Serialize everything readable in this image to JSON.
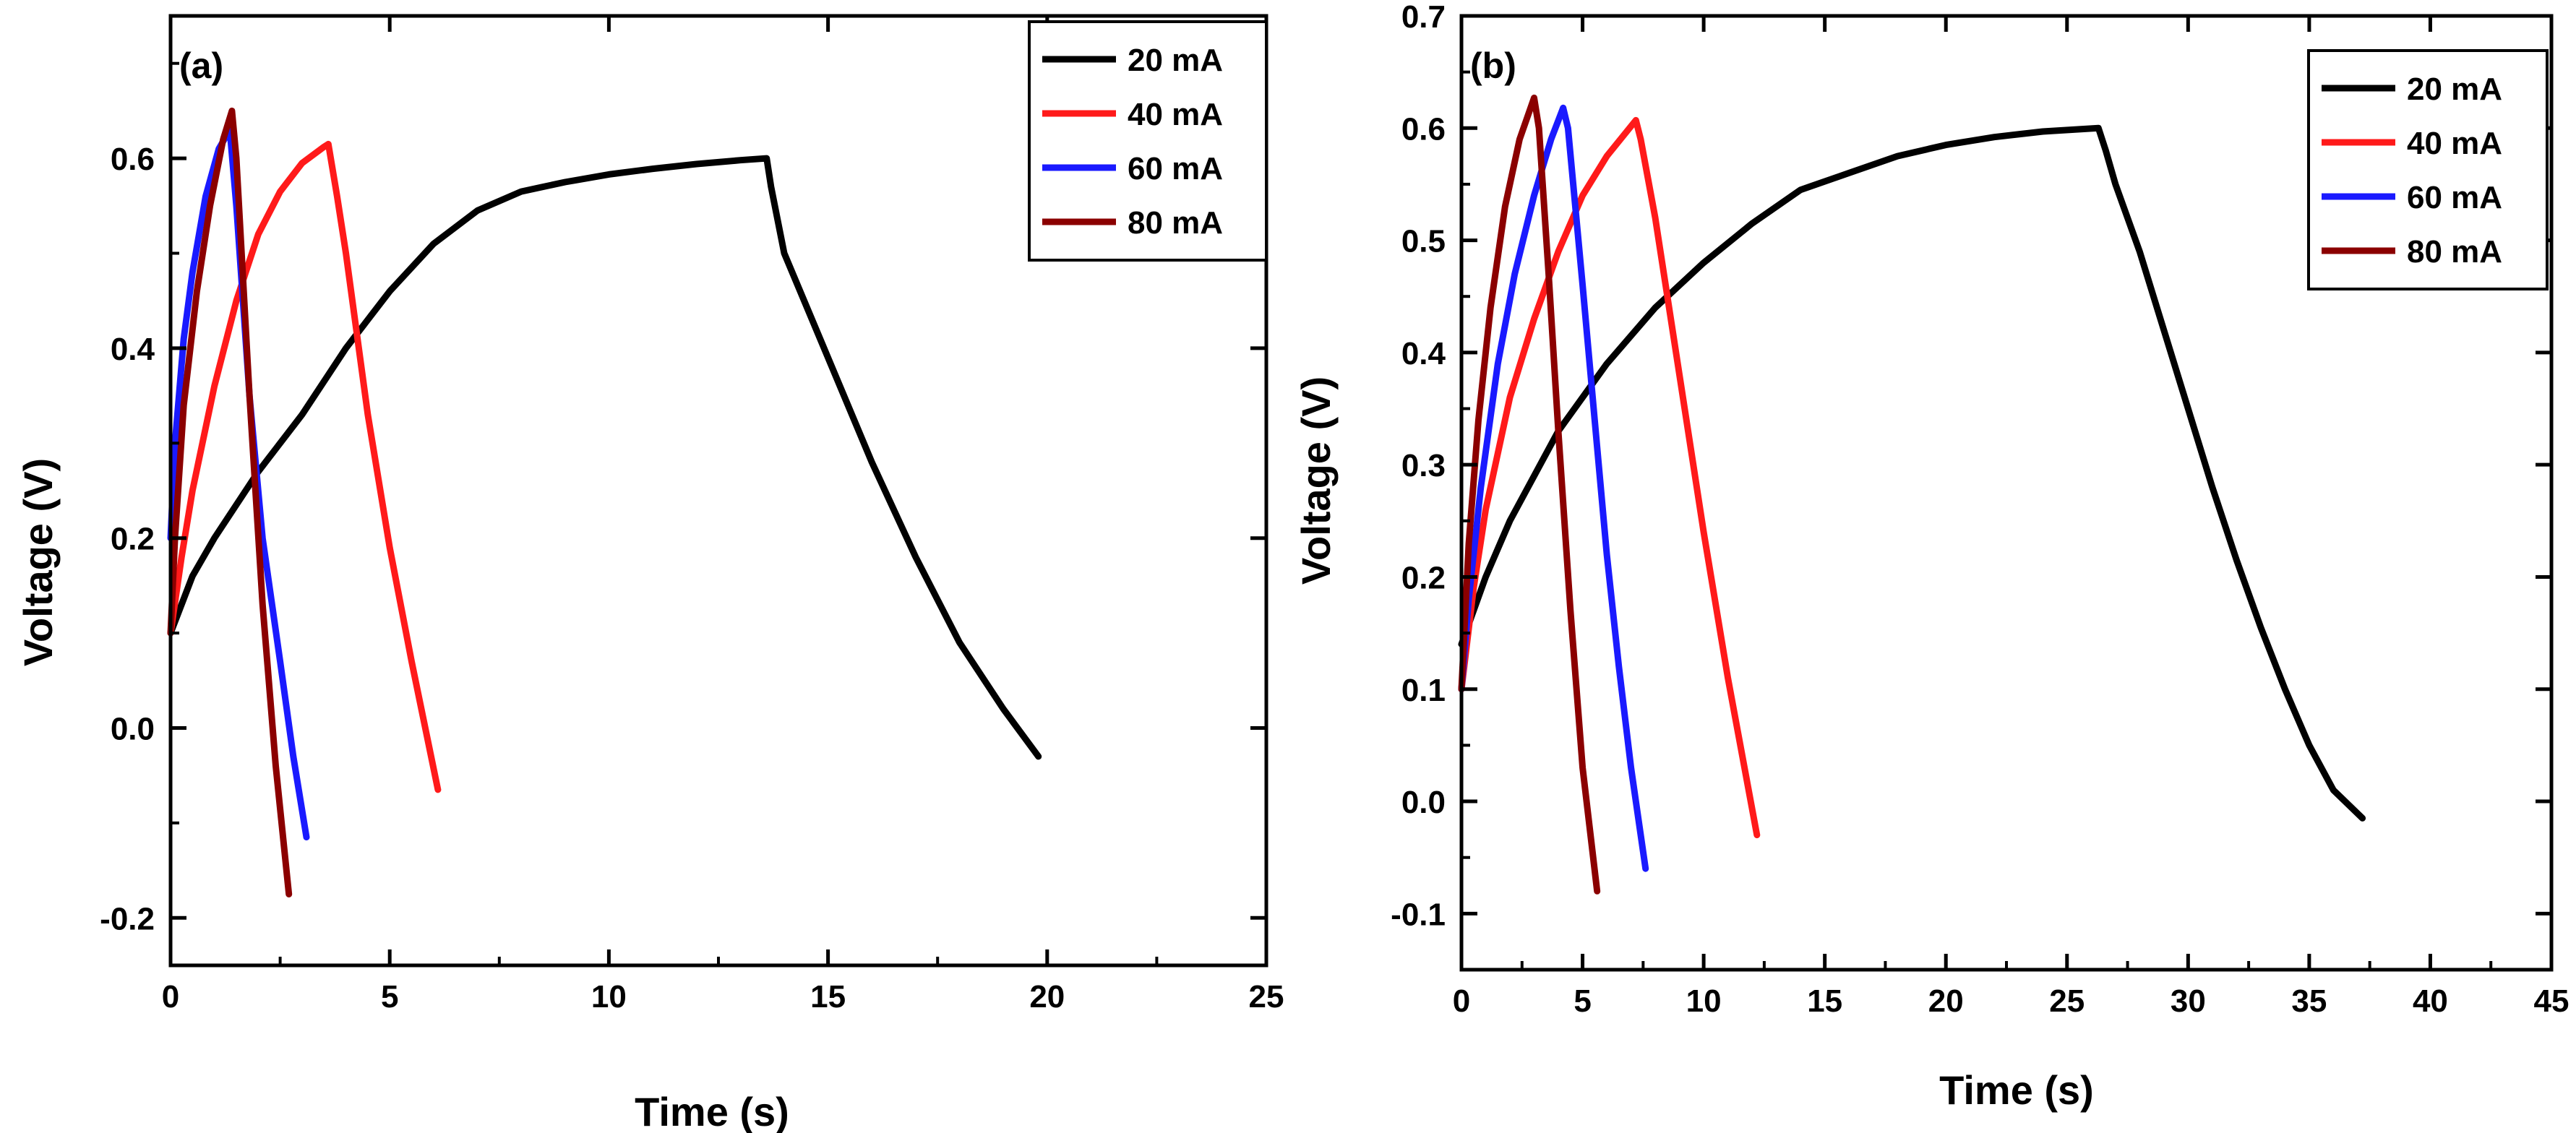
{
  "chart_data": [
    {
      "type": "line",
      "panel_label": "(a)",
      "xlabel": "Time (s)",
      "ylabel": "Voltage (V)",
      "xlim": [
        0,
        25
      ],
      "ylim": [
        -0.25,
        0.75
      ],
      "xticks": [
        0,
        5,
        10,
        15,
        20,
        25
      ],
      "xtick_labels": [
        "0",
        "5",
        "10",
        "15",
        "20",
        "25"
      ],
      "yticks": [
        -0.2,
        0.0,
        0.2,
        0.4,
        0.6
      ],
      "ytick_labels": [
        "-0.2",
        "0.0",
        "0.2",
        "0.4",
        "0.6"
      ],
      "legend_position": "top-right",
      "grid": false,
      "series": [
        {
          "name": "20 mA",
          "color": "#000000",
          "x": [
            0,
            0.5,
            1,
            2,
            3,
            4,
            5,
            6,
            7,
            8,
            9,
            10,
            11,
            12,
            13,
            13.6,
            13.7,
            14,
            15,
            16,
            17,
            18,
            19,
            19.8
          ],
          "y": [
            0.1,
            0.16,
            0.2,
            0.27,
            0.33,
            0.4,
            0.46,
            0.51,
            0.545,
            0.565,
            0.575,
            0.583,
            0.589,
            0.594,
            0.598,
            0.6,
            0.57,
            0.5,
            0.39,
            0.28,
            0.18,
            0.09,
            0.02,
            -0.03
          ]
        },
        {
          "name": "40 mA",
          "color": "#ff1a1a",
          "x": [
            0,
            0.25,
            0.5,
            1,
            1.5,
            2,
            2.5,
            3,
            3.5,
            3.6,
            3.8,
            4,
            4.5,
            5,
            5.5,
            6.1
          ],
          "y": [
            0.1,
            0.18,
            0.25,
            0.36,
            0.45,
            0.52,
            0.565,
            0.595,
            0.612,
            0.615,
            0.56,
            0.5,
            0.33,
            0.19,
            0.07,
            -0.065
          ]
        },
        {
          "name": "60 mA",
          "color": "#1a1aff",
          "x": [
            0,
            0.1,
            0.3,
            0.5,
            0.8,
            1.1,
            1.35,
            1.5,
            1.8,
            2.1,
            2.5,
            2.8,
            3.1
          ],
          "y": [
            0.2,
            0.3,
            0.41,
            0.48,
            0.56,
            0.61,
            0.63,
            0.55,
            0.35,
            0.2,
            0.07,
            -0.03,
            -0.115
          ]
        },
        {
          "name": "80 mA",
          "color": "#8b0000",
          "x": [
            0,
            0.1,
            0.3,
            0.6,
            0.9,
            1.2,
            1.4,
            1.5,
            1.8,
            2.1,
            2.4,
            2.7
          ],
          "y": [
            0.1,
            0.2,
            0.34,
            0.46,
            0.55,
            0.62,
            0.65,
            0.6,
            0.35,
            0.13,
            -0.04,
            -0.175
          ]
        }
      ]
    },
    {
      "type": "line",
      "panel_label": "(b)",
      "xlabel": "Time (s)",
      "ylabel": "Voltage (V)",
      "xlim": [
        0,
        45
      ],
      "ylim": [
        -0.15,
        0.7
      ],
      "xticks": [
        0,
        5,
        10,
        15,
        20,
        25,
        30,
        35,
        40,
        45
      ],
      "xtick_labels": [
        "0",
        "5",
        "10",
        "15",
        "20",
        "25",
        "30",
        "35",
        "40",
        "45"
      ],
      "yticks": [
        -0.1,
        0.0,
        0.1,
        0.2,
        0.3,
        0.4,
        0.5,
        0.6,
        0.7
      ],
      "ytick_labels": [
        "-0.1",
        "0.0",
        "0.1",
        "0.2",
        "0.3",
        "0.4",
        "0.5",
        "0.6",
        "0.7"
      ],
      "legend_position": "top-right",
      "grid": false,
      "series": [
        {
          "name": "20 mA",
          "color": "#000000",
          "x": [
            0,
            1,
            2,
            4,
            6,
            8,
            10,
            12,
            14,
            16,
            18,
            20,
            22,
            24,
            26.3,
            26.6,
            27,
            28,
            29,
            30,
            31,
            32,
            33,
            34,
            35,
            36,
            37.2
          ],
          "y": [
            0.14,
            0.2,
            0.25,
            0.33,
            0.39,
            0.44,
            0.48,
            0.515,
            0.545,
            0.56,
            0.575,
            0.585,
            0.592,
            0.597,
            0.6,
            0.58,
            0.55,
            0.49,
            0.42,
            0.35,
            0.28,
            0.215,
            0.155,
            0.1,
            0.05,
            0.01,
            -0.015
          ]
        },
        {
          "name": "40 mA",
          "color": "#ff1a1a",
          "x": [
            0,
            0.5,
            1,
            2,
            3,
            4,
            5,
            6,
            7.2,
            7.4,
            8,
            9,
            10,
            11,
            12.2
          ],
          "y": [
            0.1,
            0.19,
            0.26,
            0.36,
            0.43,
            0.49,
            0.54,
            0.575,
            0.607,
            0.59,
            0.52,
            0.38,
            0.24,
            0.11,
            -0.03
          ]
        },
        {
          "name": "60 mA",
          "color": "#1a1aff",
          "x": [
            0,
            0.3,
            0.8,
            1.5,
            2.2,
            3,
            3.7,
            4.2,
            4.4,
            5,
            5.5,
            6,
            6.5,
            7,
            7.6
          ],
          "y": [
            0.1,
            0.18,
            0.28,
            0.39,
            0.47,
            0.54,
            0.59,
            0.618,
            0.6,
            0.46,
            0.34,
            0.22,
            0.12,
            0.03,
            -0.06
          ]
        },
        {
          "name": "80 mA",
          "color": "#8b0000",
          "x": [
            0,
            0.3,
            0.7,
            1.2,
            1.8,
            2.4,
            3.0,
            3.2,
            3.6,
            4.0,
            4.5,
            5.0,
            5.6
          ],
          "y": [
            0.1,
            0.23,
            0.34,
            0.44,
            0.53,
            0.59,
            0.627,
            0.6,
            0.47,
            0.33,
            0.17,
            0.03,
            -0.08
          ]
        }
      ]
    }
  ]
}
